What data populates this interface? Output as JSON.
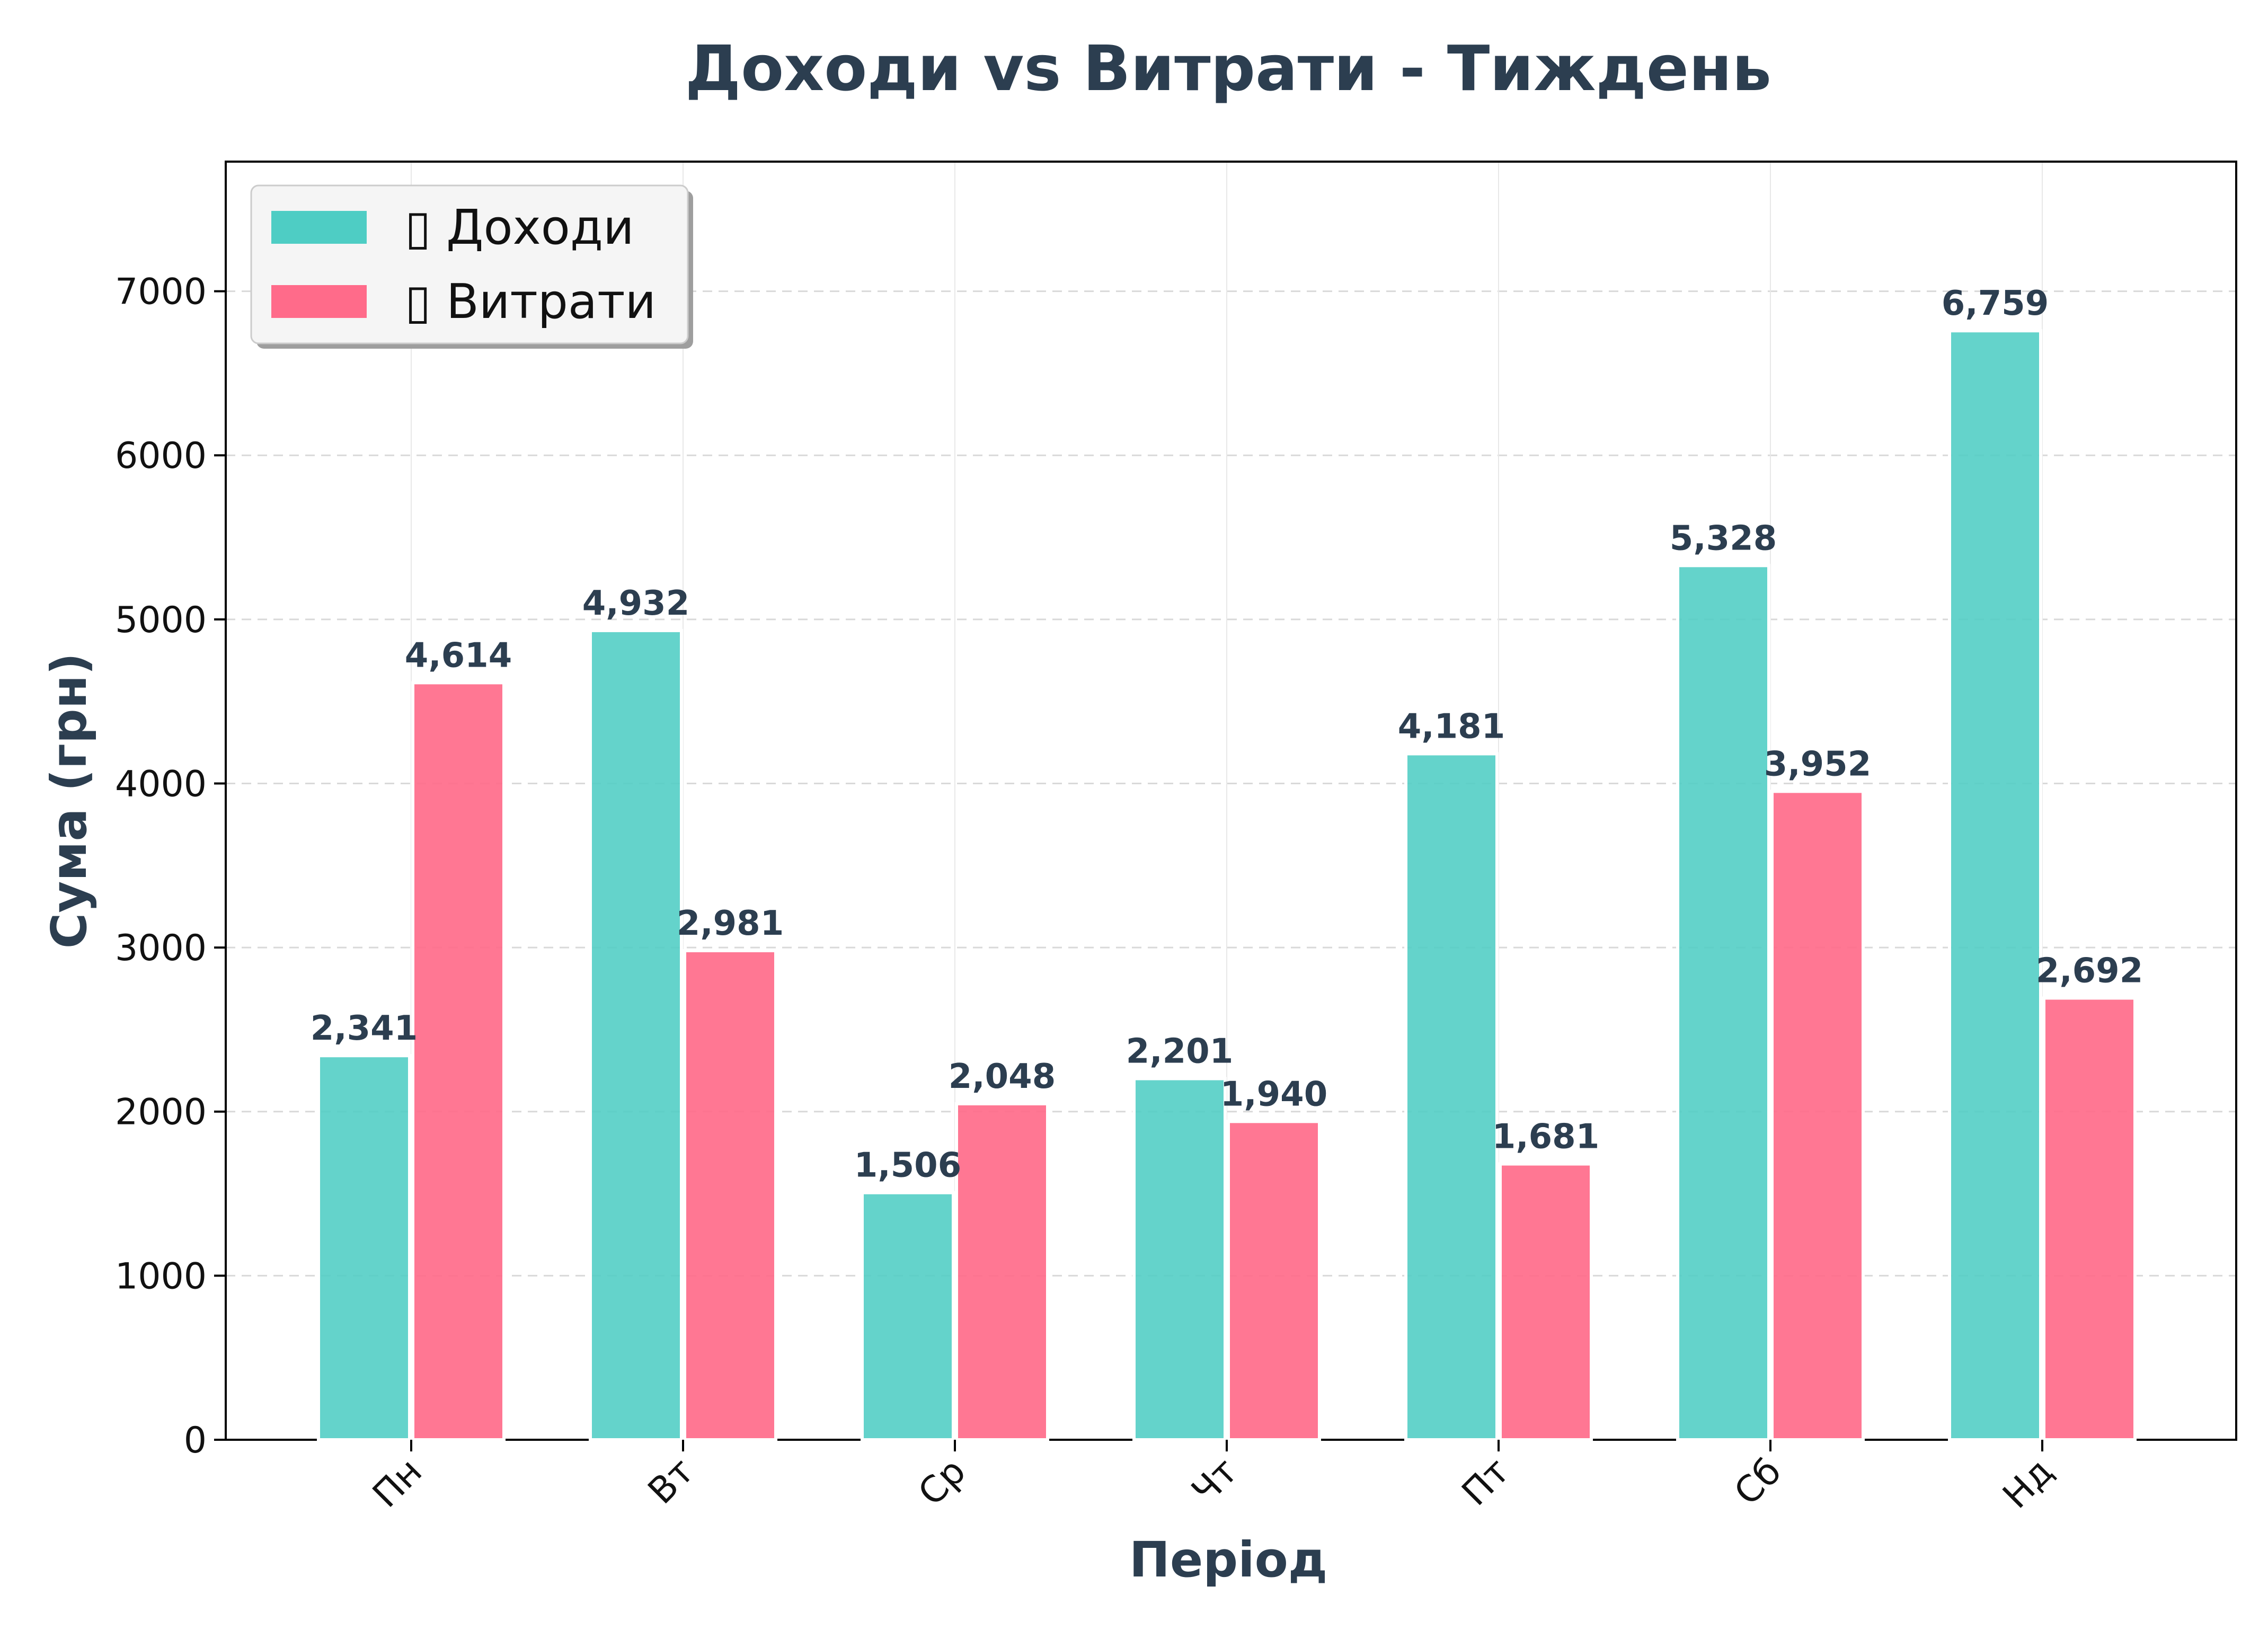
{
  "chart_data": {
    "type": "bar",
    "title": "Доходи vs Витрати - Тиждень",
    "xlabel": "Період",
    "ylabel": "Сума (грн)",
    "categories": [
      "Пн",
      "Вт",
      "Ср",
      "Чт",
      "Пт",
      "Сб",
      "Нд"
    ],
    "series": [
      {
        "name": "Доходи",
        "legend_label": "▯ Доходи",
        "color": "#4ecdc4",
        "values": [
          2341,
          4932,
          1506,
          2201,
          4181,
          5328,
          6759
        ],
        "labels": [
          "2,341",
          "4,932",
          "1,506",
          "2,201",
          "4,181",
          "5,328",
          "6,759"
        ]
      },
      {
        "name": "Витрати",
        "legend_label": "▯ Витрати",
        "color": "#ff6b8a",
        "values": [
          4614,
          2981,
          2048,
          1940,
          1681,
          3952,
          2692
        ],
        "labels": [
          "4,614",
          "2,981",
          "2,048",
          "1,940",
          "1,681",
          "3,952",
          "2,692"
        ]
      }
    ],
    "ylim": [
      0,
      7790
    ],
    "yticks": [
      0,
      1000,
      2000,
      3000,
      4000,
      5000,
      6000,
      7000
    ],
    "legend_position": "upper-left",
    "grid": true
  }
}
